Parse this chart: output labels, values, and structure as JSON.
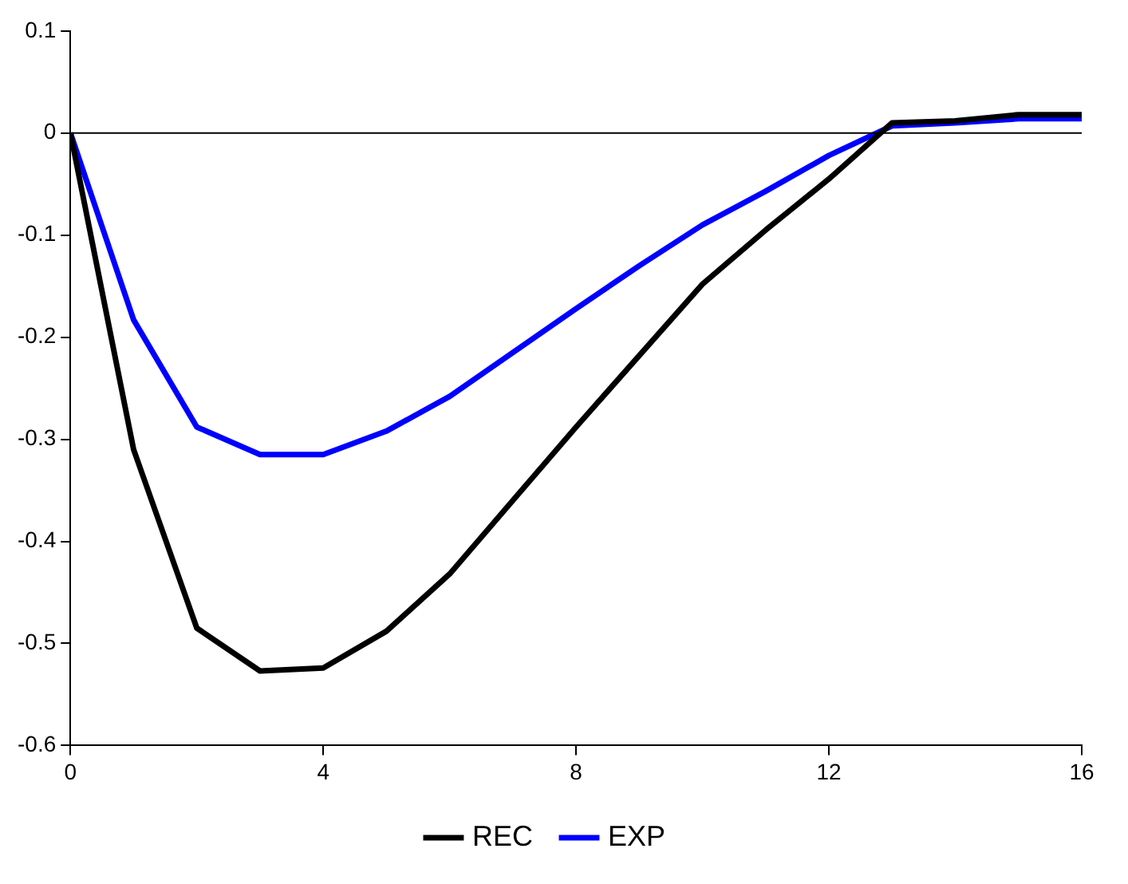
{
  "chart_data": {
    "type": "line",
    "x": [
      0,
      1,
      2,
      3,
      4,
      5,
      6,
      7,
      8,
      9,
      10,
      11,
      12,
      13,
      14,
      15,
      16
    ],
    "series": [
      {
        "name": "REC",
        "color": "#000000",
        "values": [
          0,
          -0.31,
          -0.485,
          -0.527,
          -0.524,
          -0.488,
          -0.432,
          -0.36,
          -0.288,
          -0.218,
          -0.148,
          -0.095,
          -0.045,
          0.01,
          0.012,
          0.018,
          0.018
        ]
      },
      {
        "name": "EXP",
        "color": "#0000ff",
        "values": [
          0,
          -0.183,
          -0.288,
          -0.315,
          -0.315,
          -0.292,
          -0.258,
          -0.215,
          -0.172,
          -0.13,
          -0.09,
          -0.057,
          -0.022,
          0.007,
          0.01,
          0.014,
          0.014
        ]
      }
    ],
    "xlim": [
      0,
      16
    ],
    "xticks": [
      0,
      4,
      8,
      12,
      16
    ],
    "ylim": [
      -0.6,
      0.1
    ],
    "yticks": [
      -0.6,
      -0.5,
      -0.4,
      -0.3,
      -0.2,
      -0.1,
      0,
      0.1
    ],
    "ref_lines": [
      {
        "axis": "y",
        "value": 0,
        "color": "#000000"
      }
    ],
    "grid": false,
    "legend": "bottom",
    "marker": "none",
    "line_style": "solid"
  }
}
